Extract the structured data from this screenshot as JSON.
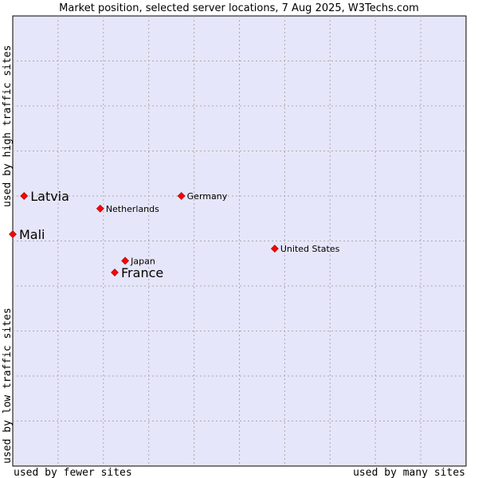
{
  "chart_data": {
    "type": "scatter",
    "title": "Market position, selected server locations, 7 Aug 2025, W3Techs.com",
    "xlabel_left": "used by fewer sites",
    "xlabel_right": "used by many sites",
    "ylabel_bottom": "used by low traffic sites",
    "ylabel_top": "used by high traffic sites",
    "xlim": [
      0,
      10
    ],
    "ylim": [
      0,
      10
    ],
    "grid": true,
    "colors": {
      "plot_background": "#e6e6fa",
      "grid": "#aaaaaa",
      "marker": "#ff0000",
      "marker_stroke": "#990000",
      "text": "#000000"
    },
    "points": [
      {
        "label": "Latvia",
        "x": 0.25,
        "y": 6.0,
        "emphasis": true
      },
      {
        "label": "Mali",
        "x": 0.0,
        "y": 5.15,
        "emphasis": true
      },
      {
        "label": "France",
        "x": 2.25,
        "y": 4.3,
        "emphasis": true
      },
      {
        "label": "Netherlands",
        "x": 1.93,
        "y": 5.72,
        "emphasis": false
      },
      {
        "label": "Germany",
        "x": 3.72,
        "y": 6.0,
        "emphasis": false
      },
      {
        "label": "Japan",
        "x": 2.48,
        "y": 4.56,
        "emphasis": false
      },
      {
        "label": "United States",
        "x": 5.78,
        "y": 4.83,
        "emphasis": false
      }
    ]
  }
}
